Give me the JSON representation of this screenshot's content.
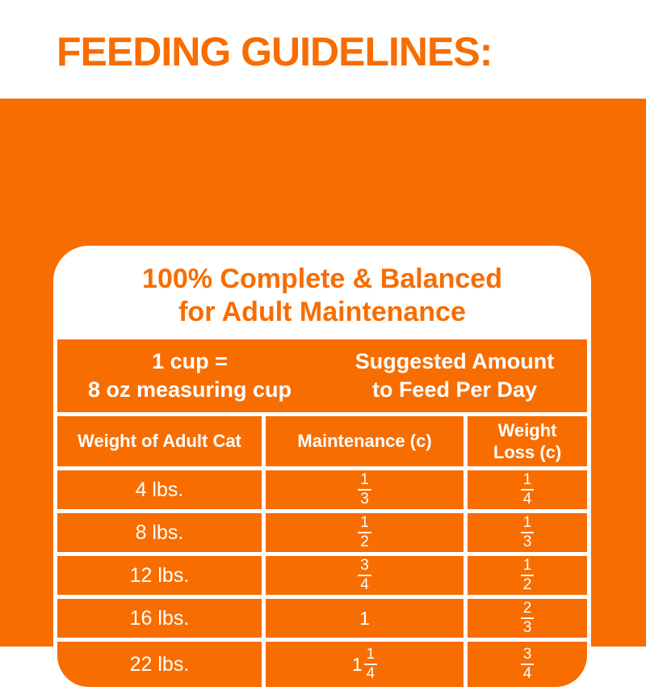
{
  "colors": {
    "brand_orange": "#f76d00",
    "white": "#ffffff"
  },
  "title": "FEEDING GUIDELINES:",
  "panel": {
    "heading": {
      "line1": "100% Complete & Balanced",
      "line2": "for Adult Maintenance"
    },
    "cup_info": {
      "line1": "1 cup =",
      "line2": "8 oz measuring cup"
    },
    "suggested": {
      "line1": "Suggested Amount",
      "line2": "to Feed Per Day"
    }
  },
  "table": {
    "headers": [
      "Weight of Adult Cat",
      "Maintenance (c)",
      "Weight Loss (c)"
    ],
    "rows": [
      {
        "weight": "4 lbs.",
        "maintenance": {
          "whole": "",
          "num": "1",
          "den": "3"
        },
        "loss": {
          "whole": "",
          "num": "1",
          "den": "4"
        }
      },
      {
        "weight": "8 lbs.",
        "maintenance": {
          "whole": "",
          "num": "1",
          "den": "2"
        },
        "loss": {
          "whole": "",
          "num": "1",
          "den": "3"
        }
      },
      {
        "weight": "12 lbs.",
        "maintenance": {
          "whole": "",
          "num": "3",
          "den": "4"
        },
        "loss": {
          "whole": "",
          "num": "1",
          "den": "2"
        }
      },
      {
        "weight": "16 lbs.",
        "maintenance": {
          "whole": "1",
          "num": "",
          "den": ""
        },
        "loss": {
          "whole": "",
          "num": "2",
          "den": "3"
        }
      },
      {
        "weight": "22 lbs.",
        "maintenance": {
          "whole": "1",
          "num": "1",
          "den": "4"
        },
        "loss": {
          "whole": "",
          "num": "3",
          "den": "4"
        }
      }
    ]
  }
}
